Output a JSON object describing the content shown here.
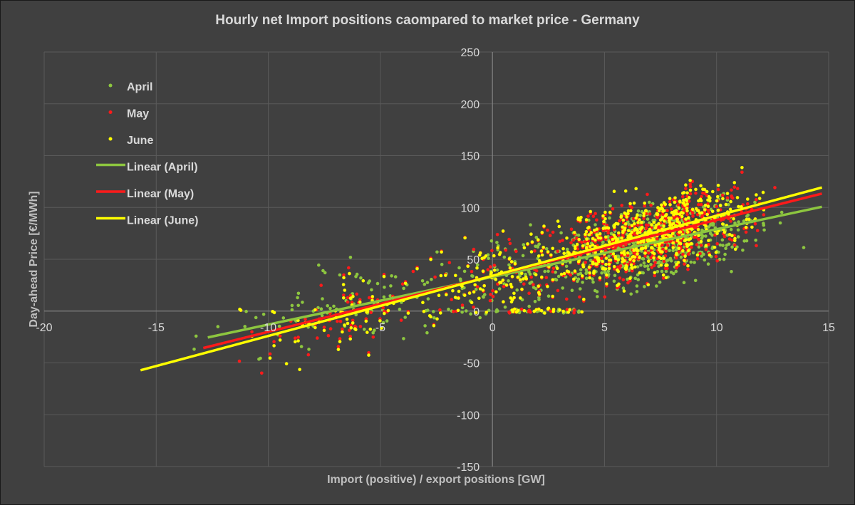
{
  "chart_data": {
    "type": "scatter",
    "title": "Hourly net Import positions caompared to market price - Germany",
    "xlabel": "Import (positive) / export positions [GW]",
    "ylabel": "Day-ahead Price [€/MWh]",
    "xlim": [
      -20,
      15
    ],
    "ylim": [
      -150,
      250
    ],
    "x_ticks": [
      -20,
      -15,
      -10,
      -5,
      0,
      5,
      10,
      15
    ],
    "y_ticks": [
      -150,
      -100,
      -50,
      0,
      50,
      100,
      150,
      200,
      250
    ],
    "grid": true,
    "legend_position": "top-left",
    "series": [
      {
        "name": "April",
        "color": "#8dc63f",
        "point_count": 720,
        "trend": {
          "slope": 4.6,
          "intercept": 33,
          "x_range": [
            -12.7,
            14.7
          ]
        }
      },
      {
        "name": "May",
        "color": "#ff1a1a",
        "point_count": 744,
        "trend": {
          "slope": 5.4,
          "intercept": 34,
          "x_range": [
            -12.9,
            14.7
          ]
        }
      },
      {
        "name": "June",
        "color": "#ffff00",
        "point_count": 720,
        "trend": {
          "slope": 5.8,
          "intercept": 34,
          "x_range": [
            -15.7,
            14.7
          ]
        }
      }
    ],
    "trendlines": [
      {
        "name": "Linear (April)",
        "color": "#8dc63f"
      },
      {
        "name": "Linear (May)",
        "color": "#ff1a1a"
      },
      {
        "name": "Linear (June)",
        "color": "#ffff00"
      }
    ]
  }
}
